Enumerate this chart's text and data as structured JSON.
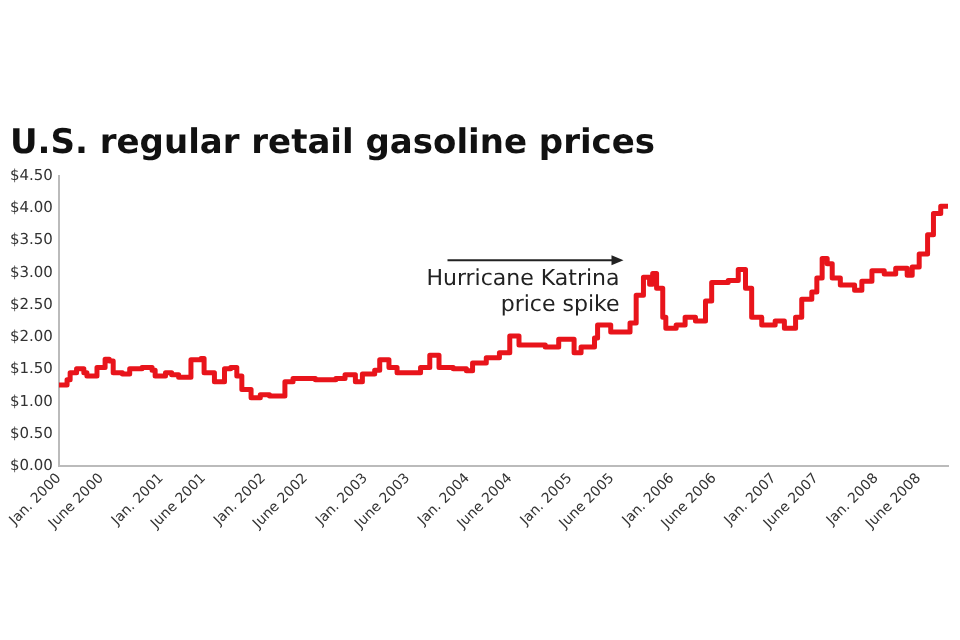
{
  "chart_data": {
    "type": "step",
    "title": "U.S. regular retail gasoline prices",
    "x": [
      "2000-01-01",
      "2000-01-30",
      "2000-02-10",
      "2000-03-04",
      "2000-03-30",
      "2000-04-10",
      "2000-05-16",
      "2000-06-14",
      "2000-06-29",
      "2000-07-13",
      "2000-08-15",
      "2000-09-10",
      "2000-10-24",
      "2000-11-29",
      "2000-12-10",
      "2001-01-16",
      "2001-02-07",
      "2001-03-04",
      "2001-04-17",
      "2001-05-23",
      "2001-06-03",
      "2001-07-10",
      "2001-08-15",
      "2001-09-06",
      "2001-09-28",
      "2001-10-16",
      "2001-11-18",
      "2001-12-21",
      "2002-01-23",
      "2002-03-19",
      "2002-04-17",
      "2002-07-06",
      "2002-09-17",
      "2002-10-20",
      "2002-11-26",
      "2002-12-21",
      "2003-02-03",
      "2003-02-21",
      "2003-03-26",
      "2003-04-24",
      "2003-07-06",
      "2003-07-17",
      "2003-08-19",
      "2003-09-21",
      "2003-11-11",
      "2003-12-28",
      "2004-01-19",
      "2004-03-08",
      "2004-04-24",
      "2004-05-31",
      "2004-07-03",
      "2004-10-05",
      "2004-11-22",
      "2005-01-16",
      "2005-02-10",
      "2005-03-30",
      "2005-04-10",
      "2005-05-27",
      "2005-08-04",
      "2005-08-26",
      "2005-09-21",
      "2005-10-13",
      "2005-10-24",
      "2005-11-07",
      "2005-11-29",
      "2005-12-10",
      "2006-01-16",
      "2006-02-17",
      "2006-03-26",
      "2006-05-01",
      "2006-05-23",
      "2006-07-21",
      "2006-08-26",
      "2006-09-21",
      "2006-10-13",
      "2006-11-18",
      "2007-01-05",
      "2007-02-07",
      "2007-03-19",
      "2007-04-10",
      "2007-05-16",
      "2007-06-03",
      "2007-06-22",
      "2007-07-10",
      "2007-07-28",
      "2007-08-26",
      "2007-10-16",
      "2007-11-11",
      "2007-12-17",
      "2008-01-30",
      "2008-03-11",
      "2008-04-21",
      "2008-05-09",
      "2008-06-03",
      "2008-07-03",
      "2008-07-24",
      "2008-08-19",
      "2008-09-14"
    ],
    "series": [
      {
        "color": "#e8141b",
        "values": [
          1.26,
          1.34,
          1.45,
          1.51,
          1.45,
          1.4,
          1.53,
          1.66,
          1.63,
          1.45,
          1.43,
          1.51,
          1.53,
          1.49,
          1.4,
          1.45,
          1.42,
          1.38,
          1.65,
          1.67,
          1.45,
          1.31,
          1.51,
          1.53,
          1.4,
          1.19,
          1.06,
          1.11,
          1.09,
          1.31,
          1.36,
          1.34,
          1.36,
          1.42,
          1.31,
          1.43,
          1.49,
          1.65,
          1.53,
          1.45,
          1.45,
          1.53,
          1.72,
          1.53,
          1.51,
          1.48,
          1.6,
          1.68,
          1.76,
          2.02,
          1.88,
          1.85,
          1.97,
          1.76,
          1.85,
          1.99,
          2.19,
          2.08,
          2.22,
          2.65,
          2.93,
          2.82,
          2.99,
          2.76,
          2.31,
          2.14,
          2.19,
          2.31,
          2.25,
          2.56,
          2.85,
          2.88,
          3.05,
          2.76,
          2.31,
          2.19,
          2.25,
          2.14,
          2.31,
          2.59,
          2.7,
          2.92,
          3.22,
          3.14,
          2.92,
          2.81,
          2.73,
          2.87,
          3.03,
          2.98,
          3.07,
          2.96,
          3.09,
          3.29,
          3.59,
          3.92,
          4.03,
          4.03
        ]
      }
    ],
    "xlim": [
      "2000-01-01",
      "2008-09-14"
    ],
    "xticks": [
      {
        "value": "2000-01-01",
        "label": "Jan. 2000"
      },
      {
        "value": "2000-06-01",
        "label": "June 2000"
      },
      {
        "value": "2001-01-01",
        "label": "Jan. 2001"
      },
      {
        "value": "2001-06-01",
        "label": "June 2001"
      },
      {
        "value": "2002-01-01",
        "label": "Jan. 2002"
      },
      {
        "value": "2002-06-01",
        "label": "June 2002"
      },
      {
        "value": "2003-01-01",
        "label": "Jan. 2003"
      },
      {
        "value": "2003-06-01",
        "label": "June 2003"
      },
      {
        "value": "2004-01-01",
        "label": "Jan. 2004"
      },
      {
        "value": "2004-06-01",
        "label": "June 2004"
      },
      {
        "value": "2005-01-01",
        "label": "Jan. 2005"
      },
      {
        "value": "2005-06-01",
        "label": "June 2005"
      },
      {
        "value": "2006-01-01",
        "label": "Jan. 2006"
      },
      {
        "value": "2006-06-01",
        "label": "June 2006"
      },
      {
        "value": "2007-01-01",
        "label": "Jan. 2007"
      },
      {
        "value": "2007-06-01",
        "label": "June 2007"
      },
      {
        "value": "2008-01-01",
        "label": "Jan. 2008"
      },
      {
        "value": "2008-06-01",
        "label": "June 2008"
      }
    ],
    "ylim": [
      0,
      4.5
    ],
    "yticks": [
      {
        "value": 0,
        "label": "$0.00"
      },
      {
        "value": 0.5,
        "label": "$0.50"
      },
      {
        "value": 1,
        "label": "$1.00"
      },
      {
        "value": 1.5,
        "label": "$1.50"
      },
      {
        "value": 2,
        "label": "$2.00"
      },
      {
        "value": 2.5,
        "label": "$2.50"
      },
      {
        "value": 3,
        "label": "$3.00"
      },
      {
        "value": 3.5,
        "label": "$3.50"
      },
      {
        "value": 4,
        "label": "$4.00"
      },
      {
        "value": 4.5,
        "label": "$4.50"
      }
    ],
    "annotations": [
      "Hurricane Katrina\nprice spike"
    ],
    "grid": false,
    "legend": false,
    "marker": "none",
    "line_style": "solid"
  }
}
